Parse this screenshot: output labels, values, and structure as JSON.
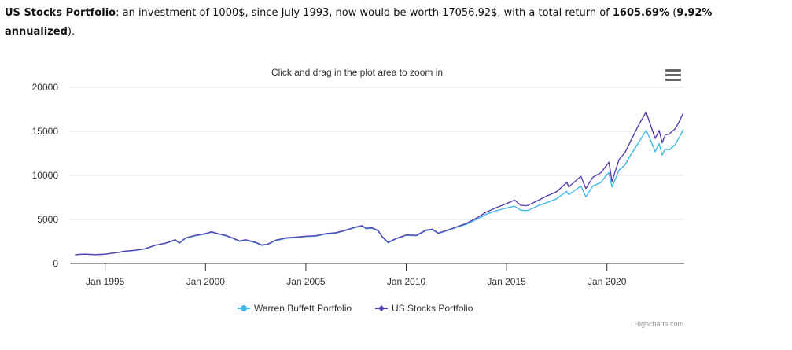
{
  "summary": {
    "name": "US Stocks Portfolio",
    "text_a": ": an investment of 1000$, since July 1993, now would be worth 17056.92$, with a total return of ",
    "total_return": "1605.69%",
    "text_b": " (",
    "annualized": "9.92% annualized",
    "text_c": ")."
  },
  "chart_data": {
    "type": "line",
    "subtitle": "Click and drag in the plot area to zoom in",
    "credits": "Highcharts.com",
    "y_ticks": [
      0,
      5000,
      10000,
      15000,
      20000
    ],
    "y_tick_labels": [
      "0",
      "5000",
      "10000",
      "15000",
      "20000"
    ],
    "ylim": [
      0,
      20000
    ],
    "xlim": [
      1993.25,
      2023.85
    ],
    "x_ticks": [
      1995,
      2000,
      2005,
      2010,
      2015,
      2020
    ],
    "x_tick_labels": [
      "Jan 1995",
      "Jan 2000",
      "Jan 2005",
      "Jan 2010",
      "Jan 2015",
      "Jan 2020"
    ],
    "legend_position": "bottom-center",
    "series": [
      {
        "name": "Warren Buffett Portfolio",
        "color": "#41b8e8",
        "points": [
          [
            1993.5,
            1000
          ],
          [
            1994.0,
            1060
          ],
          [
            1994.5,
            1010
          ],
          [
            1995.0,
            1050
          ],
          [
            1995.5,
            1200
          ],
          [
            1996.0,
            1380
          ],
          [
            1996.5,
            1480
          ],
          [
            1997.0,
            1650
          ],
          [
            1997.5,
            2050
          ],
          [
            1998.0,
            2280
          ],
          [
            1998.5,
            2650
          ],
          [
            1998.7,
            2300
          ],
          [
            1999.0,
            2850
          ],
          [
            1999.5,
            3150
          ],
          [
            2000.0,
            3350
          ],
          [
            2000.3,
            3550
          ],
          [
            2000.7,
            3300
          ],
          [
            2001.0,
            3150
          ],
          [
            2001.3,
            2900
          ],
          [
            2001.7,
            2500
          ],
          [
            2002.0,
            2650
          ],
          [
            2002.5,
            2350
          ],
          [
            2002.8,
            2050
          ],
          [
            2003.1,
            2150
          ],
          [
            2003.5,
            2600
          ],
          [
            2004.0,
            2850
          ],
          [
            2004.5,
            2950
          ],
          [
            2005.0,
            3050
          ],
          [
            2005.5,
            3100
          ],
          [
            2006.0,
            3350
          ],
          [
            2006.5,
            3450
          ],
          [
            2007.0,
            3750
          ],
          [
            2007.5,
            4100
          ],
          [
            2007.8,
            4250
          ],
          [
            2008.0,
            3950
          ],
          [
            2008.3,
            4000
          ],
          [
            2008.6,
            3700
          ],
          [
            2008.8,
            3000
          ],
          [
            2009.1,
            2350
          ],
          [
            2009.5,
            2800
          ],
          [
            2010.0,
            3200
          ],
          [
            2010.5,
            3150
          ],
          [
            2011.0,
            3750
          ],
          [
            2011.3,
            3850
          ],
          [
            2011.6,
            3400
          ],
          [
            2012.0,
            3700
          ],
          [
            2012.5,
            4100
          ],
          [
            2013.0,
            4450
          ],
          [
            2013.5,
            5000
          ],
          [
            2014.0,
            5600
          ],
          [
            2014.5,
            6000
          ],
          [
            2015.0,
            6300
          ],
          [
            2015.4,
            6500
          ],
          [
            2015.7,
            6050
          ],
          [
            2016.0,
            6000
          ],
          [
            2016.2,
            6150
          ],
          [
            2016.6,
            6600
          ],
          [
            2017.0,
            6900
          ],
          [
            2017.5,
            7350
          ],
          [
            2018.0,
            8200
          ],
          [
            2018.1,
            7800
          ],
          [
            2018.7,
            8800
          ],
          [
            2018.95,
            7550
          ],
          [
            2019.3,
            8800
          ],
          [
            2019.7,
            9200
          ],
          [
            2020.0,
            10100
          ],
          [
            2020.1,
            10300
          ],
          [
            2020.25,
            8700
          ],
          [
            2020.6,
            10600
          ],
          [
            2020.9,
            11200
          ],
          [
            2021.2,
            12400
          ],
          [
            2021.6,
            13800
          ],
          [
            2021.95,
            15100
          ],
          [
            2022.1,
            14400
          ],
          [
            2022.4,
            12700
          ],
          [
            2022.6,
            13600
          ],
          [
            2022.75,
            12300
          ],
          [
            2022.9,
            13000
          ],
          [
            2023.1,
            12900
          ],
          [
            2023.4,
            13500
          ],
          [
            2023.6,
            14300
          ],
          [
            2023.8,
            15200
          ]
        ]
      },
      {
        "name": "US Stocks Portfolio",
        "color": "#5a3fb0",
        "points": [
          [
            1993.5,
            1000
          ],
          [
            1994.0,
            1050
          ],
          [
            1994.5,
            1000
          ],
          [
            1995.0,
            1050
          ],
          [
            1995.5,
            1210
          ],
          [
            1996.0,
            1400
          ],
          [
            1996.5,
            1500
          ],
          [
            1997.0,
            1680
          ],
          [
            1997.5,
            2080
          ],
          [
            1998.0,
            2300
          ],
          [
            1998.5,
            2700
          ],
          [
            1998.7,
            2320
          ],
          [
            1999.0,
            2900
          ],
          [
            1999.5,
            3200
          ],
          [
            2000.0,
            3400
          ],
          [
            2000.3,
            3600
          ],
          [
            2000.7,
            3350
          ],
          [
            2001.0,
            3200
          ],
          [
            2001.3,
            2950
          ],
          [
            2001.7,
            2550
          ],
          [
            2002.0,
            2700
          ],
          [
            2002.5,
            2400
          ],
          [
            2002.8,
            2100
          ],
          [
            2003.1,
            2200
          ],
          [
            2003.5,
            2650
          ],
          [
            2004.0,
            2900
          ],
          [
            2004.5,
            3000
          ],
          [
            2005.0,
            3100
          ],
          [
            2005.5,
            3150
          ],
          [
            2006.0,
            3400
          ],
          [
            2006.5,
            3500
          ],
          [
            2007.0,
            3800
          ],
          [
            2007.5,
            4150
          ],
          [
            2007.8,
            4300
          ],
          [
            2008.0,
            4000
          ],
          [
            2008.3,
            4050
          ],
          [
            2008.6,
            3750
          ],
          [
            2008.8,
            3050
          ],
          [
            2009.1,
            2400
          ],
          [
            2009.5,
            2850
          ],
          [
            2010.0,
            3250
          ],
          [
            2010.5,
            3200
          ],
          [
            2011.0,
            3800
          ],
          [
            2011.3,
            3900
          ],
          [
            2011.6,
            3450
          ],
          [
            2012.0,
            3750
          ],
          [
            2012.5,
            4150
          ],
          [
            2013.0,
            4550
          ],
          [
            2013.5,
            5150
          ],
          [
            2014.0,
            5850
          ],
          [
            2014.5,
            6350
          ],
          [
            2015.0,
            6800
          ],
          [
            2015.4,
            7200
          ],
          [
            2015.7,
            6600
          ],
          [
            2016.0,
            6550
          ],
          [
            2016.2,
            6750
          ],
          [
            2016.6,
            7200
          ],
          [
            2017.0,
            7650
          ],
          [
            2017.5,
            8150
          ],
          [
            2018.0,
            9200
          ],
          [
            2018.1,
            8700
          ],
          [
            2018.7,
            9900
          ],
          [
            2018.95,
            8500
          ],
          [
            2019.3,
            9800
          ],
          [
            2019.7,
            10300
          ],
          [
            2020.0,
            11200
          ],
          [
            2020.1,
            11500
          ],
          [
            2020.25,
            9300
          ],
          [
            2020.6,
            11800
          ],
          [
            2020.9,
            12600
          ],
          [
            2021.2,
            14000
          ],
          [
            2021.6,
            15800
          ],
          [
            2021.95,
            17200
          ],
          [
            2022.1,
            16200
          ],
          [
            2022.4,
            14200
          ],
          [
            2022.6,
            15100
          ],
          [
            2022.75,
            13700
          ],
          [
            2022.9,
            14600
          ],
          [
            2023.1,
            14700
          ],
          [
            2023.4,
            15300
          ],
          [
            2023.6,
            16100
          ],
          [
            2023.8,
            17056
          ]
        ]
      }
    ]
  }
}
